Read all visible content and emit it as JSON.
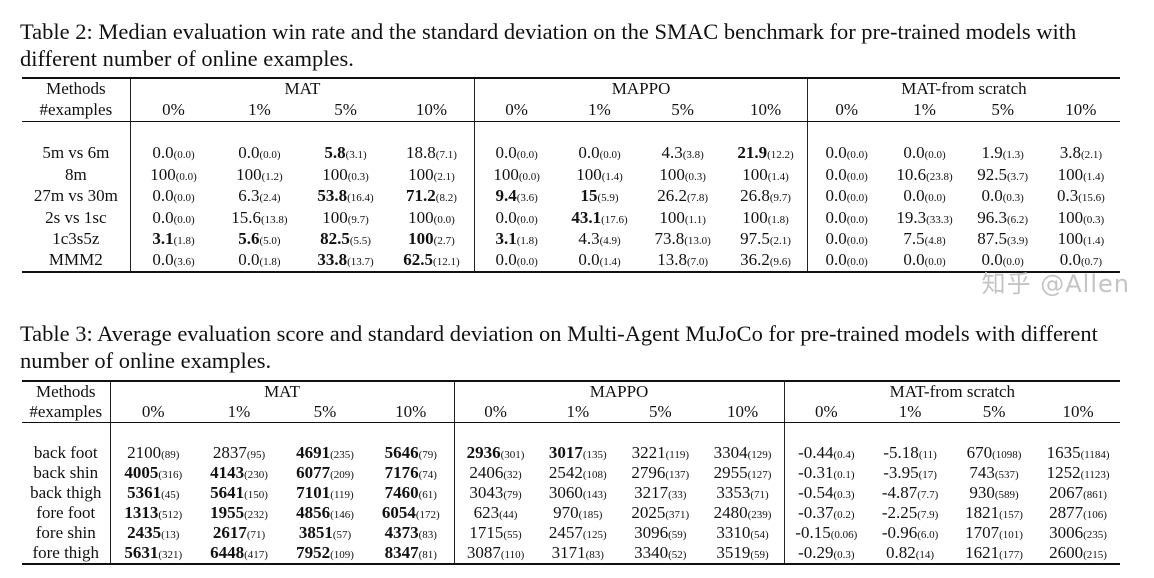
{
  "table2": {
    "caption": "Table 2: Median evaluation win rate and the standard deviation on the SMAC benchmark for pre-trained models with different number of online examples.",
    "methods_label": "Methods",
    "examples_label": "#examples",
    "groups": [
      "MAT",
      "MAPPO",
      "MAT-from scratch"
    ],
    "percentages": [
      "0%",
      "1%",
      "5%",
      "10%"
    ],
    "rows": [
      {
        "name": "5m vs 6m",
        "cells": [
          [
            "0.0",
            "(0.0)",
            0
          ],
          [
            "0.0",
            "(0.0)",
            0
          ],
          [
            "5.8",
            "(3.1)",
            1
          ],
          [
            "18.8",
            "(7.1)",
            0
          ],
          [
            "0.0",
            "(0.0)",
            0
          ],
          [
            "0.0",
            "(0.0)",
            0
          ],
          [
            "4.3",
            "(3.8)",
            0
          ],
          [
            "21.9",
            "(12.2)",
            1
          ],
          [
            "0.0",
            "(0.0)",
            0
          ],
          [
            "0.0",
            "(0.0)",
            0
          ],
          [
            "1.9",
            "(1.3)",
            0
          ],
          [
            "3.8",
            "(2.1)",
            0
          ]
        ]
      },
      {
        "name": "8m",
        "cells": [
          [
            "100",
            "(0.0)",
            0
          ],
          [
            "100",
            "(1.2)",
            0
          ],
          [
            "100",
            "(0.3)",
            0
          ],
          [
            "100",
            "(2.1)",
            0
          ],
          [
            "100",
            "(0.0)",
            0
          ],
          [
            "100",
            "(1.4)",
            0
          ],
          [
            "100",
            "(0.3)",
            0
          ],
          [
            "100",
            "(1.4)",
            0
          ],
          [
            "0.0",
            "(0.0)",
            0
          ],
          [
            "10.6",
            "(23.8)",
            0
          ],
          [
            "92.5",
            "(3.7)",
            0
          ],
          [
            "100",
            "(1.4)",
            0
          ]
        ]
      },
      {
        "name": "27m vs 30m",
        "cells": [
          [
            "0.0",
            "(0.0)",
            0
          ],
          [
            "6.3",
            "(2.4)",
            0
          ],
          [
            "53.8",
            "(16.4)",
            1
          ],
          [
            "71.2",
            "(8.2)",
            1
          ],
          [
            "9.4",
            "(3.6)",
            1
          ],
          [
            "15",
            "(5.9)",
            1
          ],
          [
            "26.2",
            "(7.8)",
            0
          ],
          [
            "26.8",
            "(9.7)",
            0
          ],
          [
            "0.0",
            "(0.0)",
            0
          ],
          [
            "0.0",
            "(0.0)",
            0
          ],
          [
            "0.0",
            "(0.3)",
            0
          ],
          [
            "0.3",
            "(15.6)",
            0
          ]
        ]
      },
      {
        "name": "2s vs 1sc",
        "cells": [
          [
            "0.0",
            "(0.0)",
            0
          ],
          [
            "15.6",
            "(13.8)",
            0
          ],
          [
            "100",
            "(9.7)",
            0
          ],
          [
            "100",
            "(0.0)",
            0
          ],
          [
            "0.0",
            "(0.0)",
            0
          ],
          [
            "43.1",
            "(17.6)",
            1
          ],
          [
            "100",
            "(1.1)",
            0
          ],
          [
            "100",
            "(1.8)",
            0
          ],
          [
            "0.0",
            "(0.0)",
            0
          ],
          [
            "19.3",
            "(33.3)",
            0
          ],
          [
            "96.3",
            "(6.2)",
            0
          ],
          [
            "100",
            "(0.3)",
            0
          ]
        ]
      },
      {
        "name": "1c3s5z",
        "cells": [
          [
            "3.1",
            "(1.8)",
            1
          ],
          [
            "5.6",
            "(5.0)",
            1
          ],
          [
            "82.5",
            "(5.5)",
            1
          ],
          [
            "100",
            "(2.7)",
            1
          ],
          [
            "3.1",
            "(1.8)",
            1
          ],
          [
            "4.3",
            "(4.9)",
            0
          ],
          [
            "73.8",
            "(13.0)",
            0
          ],
          [
            "97.5",
            "(2.1)",
            0
          ],
          [
            "0.0",
            "(0.0)",
            0
          ],
          [
            "7.5",
            "(4.8)",
            0
          ],
          [
            "87.5",
            "(3.9)",
            0
          ],
          [
            "100",
            "(1.4)",
            0
          ]
        ]
      },
      {
        "name": "MMM2",
        "cells": [
          [
            "0.0",
            "(3.6)",
            0
          ],
          [
            "0.0",
            "(1.8)",
            0
          ],
          [
            "33.8",
            "(13.7)",
            1
          ],
          [
            "62.5",
            "(12.1)",
            1
          ],
          [
            "0.0",
            "(0.0)",
            0
          ],
          [
            "0.0",
            "(1.4)",
            0
          ],
          [
            "13.8",
            "(7.0)",
            0
          ],
          [
            "36.2",
            "(9.6)",
            0
          ],
          [
            "0.0",
            "(0.0)",
            0
          ],
          [
            "0.0",
            "(0.0)",
            0
          ],
          [
            "0.0",
            "(0.0)",
            0
          ],
          [
            "0.0",
            "(0.7)",
            0
          ]
        ]
      }
    ]
  },
  "table3": {
    "caption": "Table 3: Average evaluation score and standard deviation on Multi-Agent MuJoCo for pre-trained models with different number of online examples.",
    "methods_label": "Methods",
    "examples_label": "#examples",
    "groups": [
      "MAT",
      "MAPPO",
      "MAT-from scratch"
    ],
    "percentages": [
      "0%",
      "1%",
      "5%",
      "10%"
    ],
    "rows": [
      {
        "name": "back foot",
        "cells": [
          [
            "2100",
            "(89)",
            0
          ],
          [
            "2837",
            "(95)",
            0
          ],
          [
            "4691",
            "(235)",
            1
          ],
          [
            "5646",
            "(79)",
            1
          ],
          [
            "2936",
            "(301)",
            1
          ],
          [
            "3017",
            "(135)",
            1
          ],
          [
            "3221",
            "(119)",
            0
          ],
          [
            "3304",
            "(129)",
            0
          ],
          [
            "-0.44",
            "(0.4)",
            0
          ],
          [
            "-5.18",
            "(11)",
            0
          ],
          [
            "670",
            "(1098)",
            0
          ],
          [
            "1635",
            "(1184)",
            0
          ]
        ]
      },
      {
        "name": "back shin",
        "cells": [
          [
            "4005",
            "(316)",
            1
          ],
          [
            "4143",
            "(230)",
            1
          ],
          [
            "6077",
            "(209)",
            1
          ],
          [
            "7176",
            "(74)",
            1
          ],
          [
            "2406",
            "(32)",
            0
          ],
          [
            "2542",
            "(108)",
            0
          ],
          [
            "2796",
            "(137)",
            0
          ],
          [
            "2955",
            "(127)",
            0
          ],
          [
            "-0.31",
            "(0.1)",
            0
          ],
          [
            "-3.95",
            "(17)",
            0
          ],
          [
            "743",
            "(537)",
            0
          ],
          [
            "1252",
            "(1123)",
            0
          ]
        ]
      },
      {
        "name": "back thigh",
        "cells": [
          [
            "5361",
            "(45)",
            1
          ],
          [
            "5641",
            "(150)",
            1
          ],
          [
            "7101",
            "(119)",
            1
          ],
          [
            "7460",
            "(61)",
            1
          ],
          [
            "3043",
            "(79)",
            0
          ],
          [
            "3060",
            "(143)",
            0
          ],
          [
            "3217",
            "(33)",
            0
          ],
          [
            "3353",
            "(71)",
            0
          ],
          [
            "-0.54",
            "(0.3)",
            0
          ],
          [
            "-4.87",
            "(7.7)",
            0
          ],
          [
            "930",
            "(589)",
            0
          ],
          [
            "2067",
            "(861)",
            0
          ]
        ]
      },
      {
        "name": "fore foot",
        "cells": [
          [
            "1313",
            "(512)",
            1
          ],
          [
            "1955",
            "(232)",
            1
          ],
          [
            "4856",
            "(146)",
            1
          ],
          [
            "6054",
            "(172)",
            1
          ],
          [
            "623",
            "(44)",
            0
          ],
          [
            "970",
            "(185)",
            0
          ],
          [
            "2025",
            "(371)",
            0
          ],
          [
            "2480",
            "(239)",
            0
          ],
          [
            "-0.37",
            "(0.2)",
            0
          ],
          [
            "-2.25",
            "(7.9)",
            0
          ],
          [
            "1821",
            "(157)",
            0
          ],
          [
            "2877",
            "(106)",
            0
          ]
        ]
      },
      {
        "name": "fore shin",
        "cells": [
          [
            "2435",
            "(13)",
            1
          ],
          [
            "2617",
            "(71)",
            1
          ],
          [
            "3851",
            "(57)",
            1
          ],
          [
            "4373",
            "(83)",
            1
          ],
          [
            "1715",
            "(55)",
            0
          ],
          [
            "2457",
            "(125)",
            0
          ],
          [
            "3096",
            "(59)",
            0
          ],
          [
            "3310",
            "(54)",
            0
          ],
          [
            "-0.15",
            "(0.06)",
            0
          ],
          [
            "-0.96",
            "(6.0)",
            0
          ],
          [
            "1707",
            "(101)",
            0
          ],
          [
            "3006",
            "(235)",
            0
          ]
        ]
      },
      {
        "name": "fore thigh",
        "cells": [
          [
            "5631",
            "(321)",
            1
          ],
          [
            "6448",
            "(417)",
            1
          ],
          [
            "7952",
            "(109)",
            1
          ],
          [
            "8347",
            "(81)",
            1
          ],
          [
            "3087",
            "(110)",
            0
          ],
          [
            "3171",
            "(83)",
            0
          ],
          [
            "3340",
            "(52)",
            0
          ],
          [
            "3519",
            "(59)",
            0
          ],
          [
            "-0.29",
            "(0.3)",
            0
          ],
          [
            "0.82",
            "(14)",
            0
          ],
          [
            "1621",
            "(177)",
            0
          ],
          [
            "2600",
            "(215)",
            0
          ]
        ]
      }
    ]
  },
  "watermark": "知乎 @Allen"
}
